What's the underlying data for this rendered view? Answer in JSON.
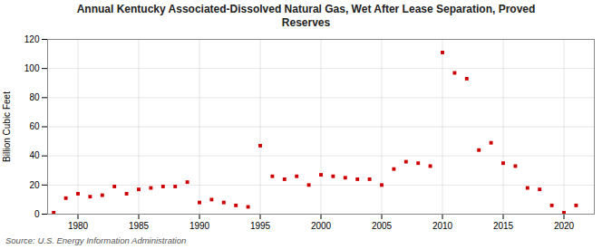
{
  "chart_data": {
    "type": "scatter",
    "title": "Annual Kentucky Associated-Dissolved Natural Gas, Wet After Lease Separation, Proved\nReserves",
    "ylabel": "Billion Cubic Feet",
    "source": "Source: U.S. Energy Information Administration",
    "x": [
      1978,
      1979,
      1980,
      1981,
      1982,
      1983,
      1984,
      1985,
      1986,
      1987,
      1988,
      1989,
      1990,
      1991,
      1992,
      1993,
      1994,
      1995,
      1996,
      1997,
      1998,
      1999,
      2000,
      2001,
      2002,
      2003,
      2004,
      2005,
      2006,
      2007,
      2008,
      2009,
      2010,
      2011,
      2012,
      2013,
      2014,
      2015,
      2016,
      2017,
      2018,
      2019,
      2020,
      2021
    ],
    "values": [
      1,
      11,
      14,
      12,
      13,
      19,
      14,
      17,
      18,
      19,
      19,
      22,
      8,
      10,
      8,
      6,
      5,
      47,
      26,
      24,
      26,
      20,
      27,
      26,
      25,
      24,
      24,
      20,
      31,
      36,
      35,
      33,
      111,
      97,
      93,
      44,
      49,
      35,
      33,
      18,
      17,
      6,
      1,
      6
    ],
    "color": "#cc0000",
    "marker": "square",
    "xlim": [
      1977.5,
      2022.5
    ],
    "xticks": [
      1980,
      1985,
      1990,
      1995,
      2000,
      2005,
      2010,
      2015,
      2020
    ],
    "ylim": [
      0,
      120
    ],
    "yticks": [
      0,
      20,
      40,
      60,
      80,
      100,
      120
    ],
    "grid": true
  }
}
